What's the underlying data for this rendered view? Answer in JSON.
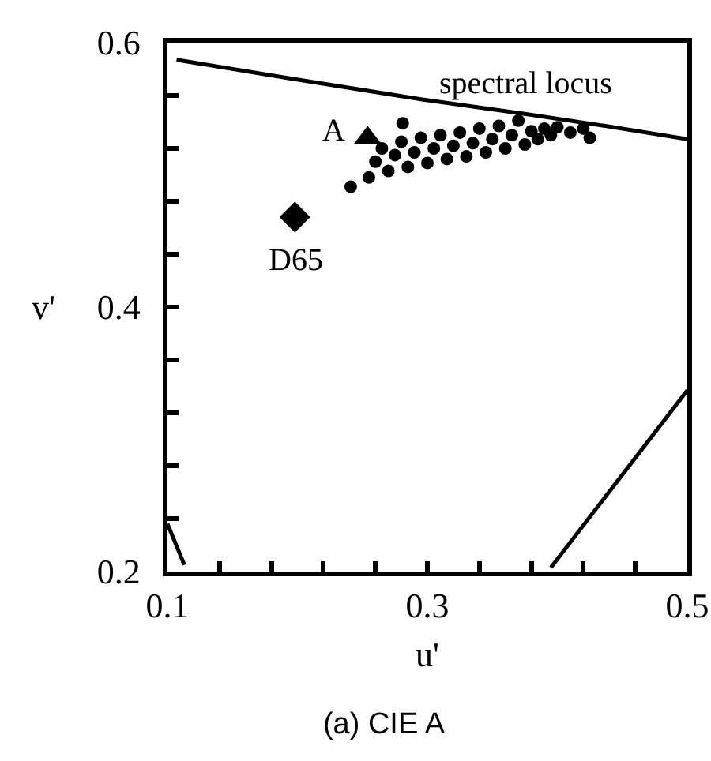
{
  "chart_data": {
    "type": "scatter",
    "title": "(a) CIE A",
    "xlabel": "u'",
    "ylabel": "v'",
    "xlim": [
      0.1,
      0.5
    ],
    "ylim": [
      0.2,
      0.6
    ],
    "xticks": [
      0.1,
      {
        "value": 0.14,
        "label": null
      },
      {
        "value": 0.18,
        "label": null
      },
      {
        "value": 0.22,
        "label": null
      },
      {
        "value": 0.26,
        "label": null
      },
      0.3,
      {
        "value": 0.34,
        "label": null
      },
      {
        "value": 0.38,
        "label": null
      },
      {
        "value": 0.42,
        "label": null
      },
      {
        "value": 0.46,
        "label": null
      },
      0.5
    ],
    "yticks": [
      0.2,
      {
        "value": 0.24,
        "label": null
      },
      {
        "value": 0.28,
        "label": null
      },
      {
        "value": 0.32,
        "label": null
      },
      {
        "value": 0.36,
        "label": null
      },
      0.4,
      {
        "value": 0.44,
        "label": null
      },
      {
        "value": 0.48,
        "label": null
      },
      {
        "value": 0.52,
        "label": null
      },
      {
        "value": 0.56,
        "label": null
      },
      0.6
    ],
    "grid": false,
    "legend": false,
    "series": [
      {
        "type": "line",
        "name": "spectral locus",
        "color": "#000000",
        "marker": "none",
        "line_style": "solid",
        "x": [
          0.107,
          0.194,
          0.296,
          0.376,
          0.437,
          0.5
        ],
        "values": [
          0.587,
          0.573,
          0.557,
          0.546,
          0.537,
          0.527
        ]
      },
      {
        "type": "line",
        "color": "#000000",
        "marker": "none",
        "line_style": "solid",
        "x": [
          0.395,
          0.5
        ],
        "values": [
          0.203,
          0.337
        ]
      },
      {
        "type": "line",
        "color": "#000000",
        "marker": "none",
        "line_style": "solid",
        "x": [
          0.1,
          0.113
        ],
        "values": [
          0.236,
          0.205
        ]
      },
      {
        "color": "#000000",
        "marker": "circle",
        "x": [
          0.241,
          0.255,
          0.26,
          0.263,
          0.265,
          0.27,
          0.275,
          0.28,
          0.281,
          0.285,
          0.29,
          0.295,
          0.3,
          0.305,
          0.31,
          0.315,
          0.32,
          0.325,
          0.33,
          0.335,
          0.34,
          0.345,
          0.35,
          0.355,
          0.36,
          0.365,
          0.37,
          0.375,
          0.38,
          0.385,
          0.39,
          0.395,
          0.4,
          0.41,
          0.42,
          0.425
        ],
        "values": [
          0.491,
          0.498,
          0.51,
          null,
          0.52,
          0.503,
          0.515,
          0.525,
          0.539,
          0.506,
          0.517,
          0.528,
          0.509,
          0.52,
          0.53,
          0.512,
          0.522,
          0.532,
          0.514,
          0.524,
          0.535,
          0.517,
          0.527,
          0.537,
          0.52,
          0.53,
          0.541,
          0.523,
          0.533,
          0.527,
          0.535,
          0.53,
          0.536,
          0.532,
          0.535,
          0.528
        ]
      },
      {
        "name": "A",
        "color": "#000000",
        "marker": "triangle",
        "x": [
          0.254
        ],
        "values": [
          0.528
        ]
      },
      {
        "name": "D65",
        "color": "#000000",
        "marker": "diamond",
        "x": [
          0.198
        ],
        "values": [
          0.468
        ]
      }
    ]
  }
}
